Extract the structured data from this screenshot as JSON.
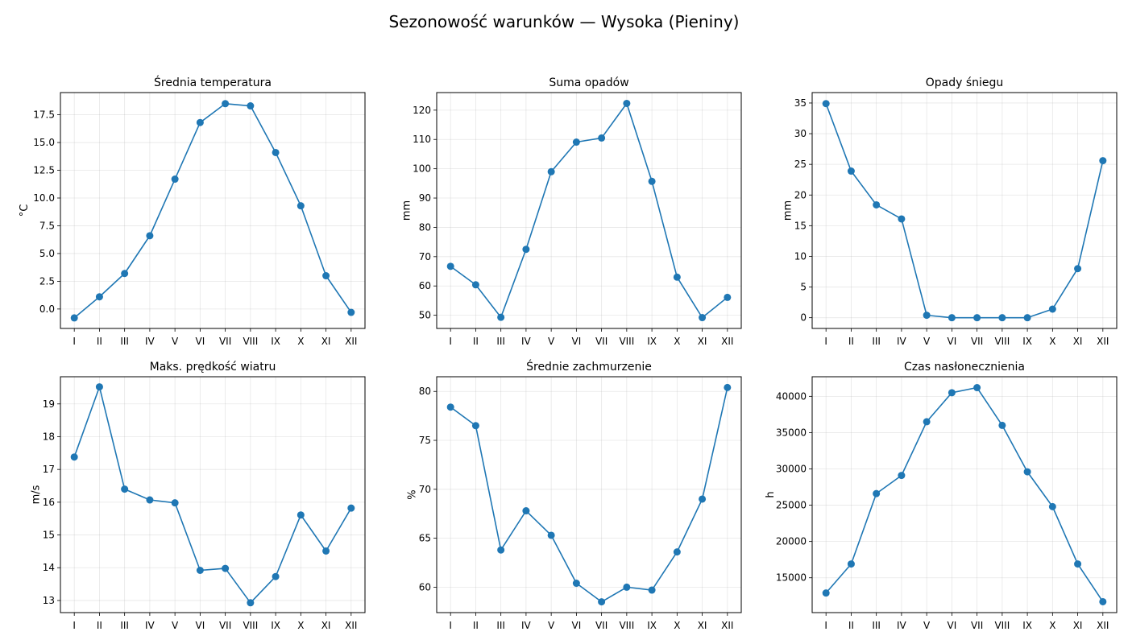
{
  "title": "Sezonowość warunków — Wysoka (Pieniny)",
  "colors": {
    "series": "#1f77b4"
  },
  "chart_data": [
    {
      "type": "line",
      "title": "Średnia temperatura",
      "ylabel": "°C",
      "categories": [
        "I",
        "II",
        "III",
        "IV",
        "V",
        "VI",
        "VII",
        "VIII",
        "IX",
        "X",
        "XI",
        "XII"
      ],
      "values": [
        -0.8,
        1.1,
        3.2,
        6.6,
        11.7,
        16.8,
        18.5,
        18.3,
        14.1,
        9.3,
        3.0,
        -0.3
      ],
      "ylim": [
        -1.75,
        19.5
      ],
      "yticks": [
        0.0,
        2.5,
        5.0,
        7.5,
        10.0,
        12.5,
        15.0,
        17.5
      ],
      "ytick_labels": [
        "0.0",
        "2.5",
        "5.0",
        "7.5",
        "10.0",
        "12.5",
        "15.0",
        "17.5"
      ],
      "grid": true
    },
    {
      "type": "line",
      "title": "Suma opadów",
      "ylabel": "mm",
      "categories": [
        "I",
        "II",
        "III",
        "IV",
        "V",
        "VI",
        "VII",
        "VIII",
        "IX",
        "X",
        "XI",
        "XII"
      ],
      "values": [
        66.7,
        60.4,
        49.3,
        72.5,
        99.0,
        109.1,
        110.5,
        122.3,
        95.7,
        63.0,
        49.2,
        56.1
      ],
      "ylim": [
        45.5,
        126.0
      ],
      "yticks": [
        50,
        60,
        70,
        80,
        90,
        100,
        110,
        120
      ],
      "ytick_labels": [
        "50",
        "60",
        "70",
        "80",
        "90",
        "100",
        "110",
        "120"
      ],
      "grid": true
    },
    {
      "type": "line",
      "title": "Opady śniegu",
      "ylabel": "mm",
      "categories": [
        "I",
        "II",
        "III",
        "IV",
        "V",
        "VI",
        "VII",
        "VIII",
        "IX",
        "X",
        "XI",
        "XII"
      ],
      "values": [
        34.9,
        23.9,
        18.4,
        16.1,
        0.4,
        0.0,
        0.0,
        0.0,
        0.0,
        1.4,
        8.0,
        25.6
      ],
      "ylim": [
        -1.75,
        36.7
      ],
      "yticks": [
        0,
        5,
        10,
        15,
        20,
        25,
        30,
        35
      ],
      "ytick_labels": [
        "0",
        "5",
        "10",
        "15",
        "20",
        "25",
        "30",
        "35"
      ],
      "grid": true
    },
    {
      "type": "line",
      "title": "Maks. prędkość wiatru",
      "ylabel": "m/s",
      "categories": [
        "I",
        "II",
        "III",
        "IV",
        "V",
        "VI",
        "VII",
        "VIII",
        "IX",
        "X",
        "XI",
        "XII"
      ],
      "values": [
        17.38,
        19.52,
        16.4,
        16.07,
        15.98,
        13.92,
        13.98,
        12.93,
        13.73,
        15.61,
        14.51,
        15.82
      ],
      "ylim": [
        12.63,
        19.83
      ],
      "yticks": [
        13,
        14,
        15,
        16,
        17,
        18,
        19
      ],
      "ytick_labels": [
        "13",
        "14",
        "15",
        "16",
        "17",
        "18",
        "19"
      ],
      "grid": true
    },
    {
      "type": "line",
      "title": "Średnie zachmurzenie",
      "ylabel": "%",
      "categories": [
        "I",
        "II",
        "III",
        "IV",
        "V",
        "VI",
        "VII",
        "VIII",
        "IX",
        "X",
        "XI",
        "XII"
      ],
      "values": [
        78.4,
        76.5,
        63.8,
        67.8,
        65.3,
        60.4,
        58.5,
        60.0,
        59.7,
        63.6,
        69.0,
        80.4
      ],
      "ylim": [
        57.4,
        81.5
      ],
      "yticks": [
        60,
        65,
        70,
        75,
        80
      ],
      "ytick_labels": [
        "60",
        "65",
        "70",
        "75",
        "80"
      ],
      "grid": true
    },
    {
      "type": "line",
      "title": "Czas nasłonecznienia",
      "ylabel": "h",
      "categories": [
        "I",
        "II",
        "III",
        "IV",
        "V",
        "VI",
        "VII",
        "VIII",
        "IX",
        "X",
        "XI",
        "XII"
      ],
      "values": [
        12900,
        16900,
        26600,
        29100,
        36500,
        40500,
        41200,
        36000,
        29600,
        24800,
        16900,
        11700
      ],
      "ylim": [
        10200,
        42700
      ],
      "yticks": [
        15000,
        20000,
        25000,
        30000,
        35000,
        40000
      ],
      "ytick_labels": [
        "15000",
        "20000",
        "25000",
        "30000",
        "35000",
        "40000"
      ],
      "grid": true
    }
  ]
}
